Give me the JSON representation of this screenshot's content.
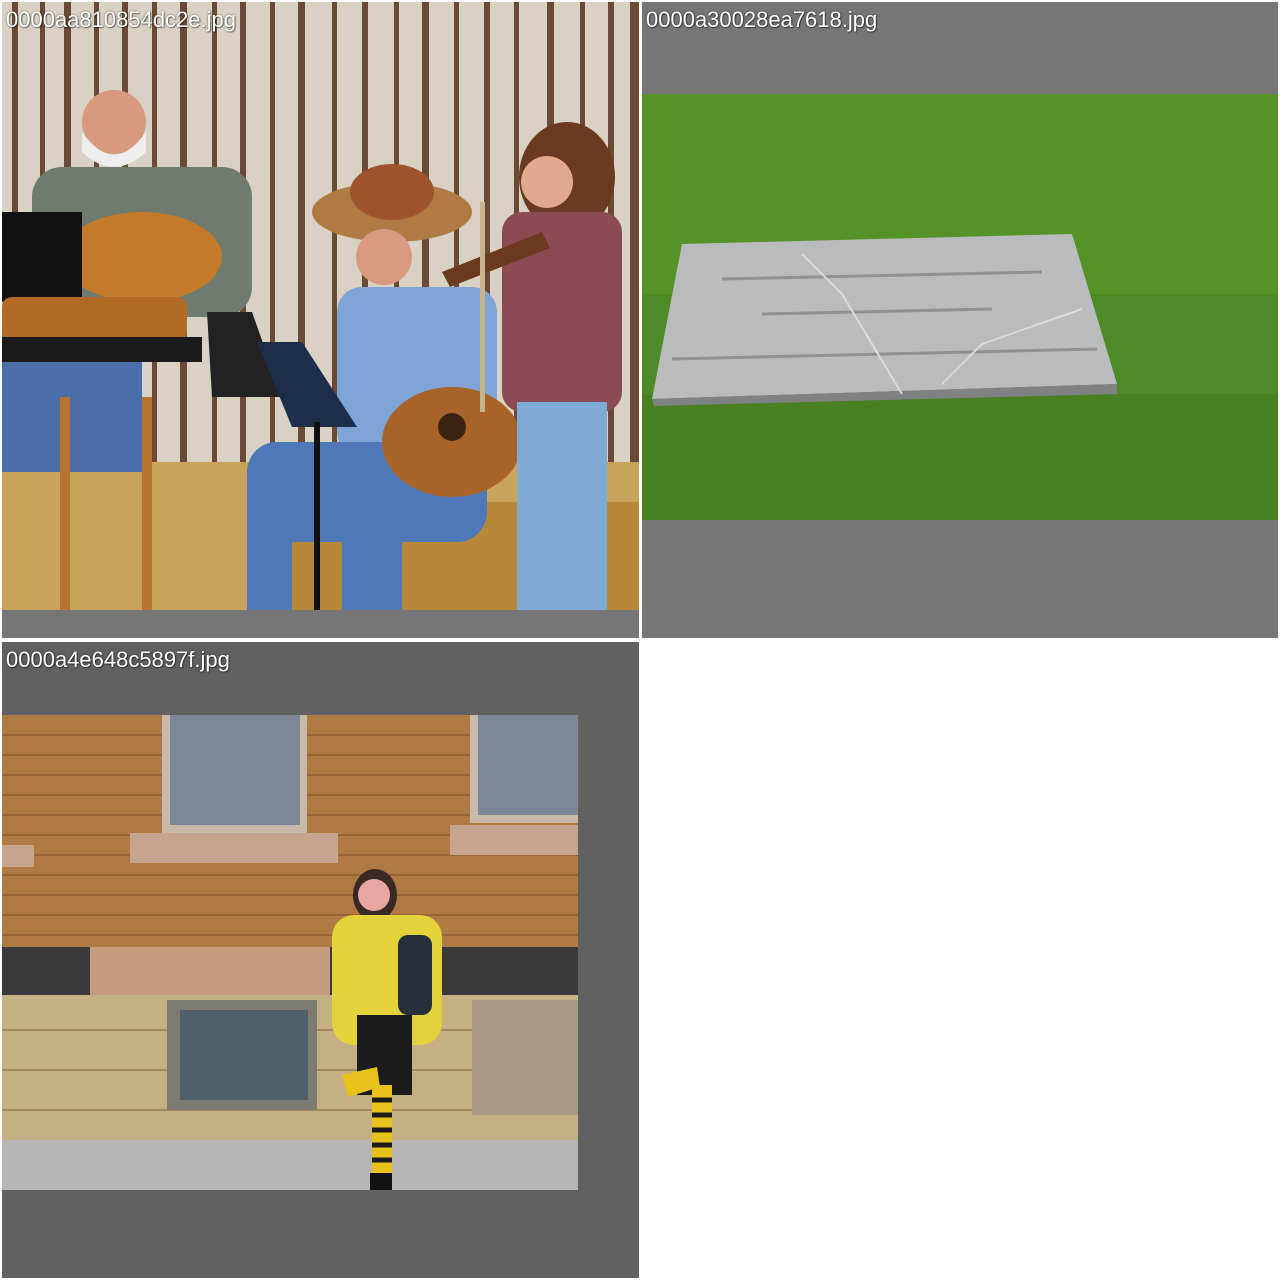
{
  "grid": {
    "tiles": [
      {
        "filename": "0000aa810854dc2e.jpg"
      },
      {
        "filename": "0000a30028ea7618.jpg"
      },
      {
        "filename": "0000a4e648c5897f.jpg"
      }
    ]
  },
  "colors": {
    "tile_background": "#767676",
    "tile_background_dark": "#616161",
    "page_background": "#ffffff",
    "caption_text": "#ffffff"
  }
}
